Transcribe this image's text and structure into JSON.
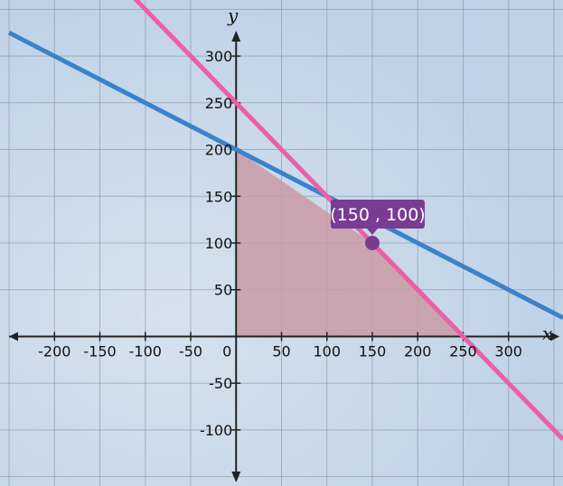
{
  "chart_data": {
    "type": "line",
    "title": "",
    "xlabel": "x",
    "ylabel": "y",
    "xlim": [
      -260,
      360
    ],
    "ylim": [
      -160,
      360
    ],
    "grid": true,
    "x_ticks": [
      -200,
      -150,
      -100,
      -50,
      0,
      50,
      100,
      150,
      200,
      250,
      300
    ],
    "y_ticks": [
      -100,
      -50,
      50,
      100,
      150,
      200,
      250,
      300
    ],
    "x_tick_labels": [
      "-200",
      "-150",
      "-100",
      "-50",
      "0",
      "50",
      "100",
      "150",
      "200",
      "250",
      "300"
    ],
    "y_tick_labels": [
      "-100",
      "-50",
      "50",
      "100",
      "150",
      "200",
      "250",
      "300"
    ],
    "series": [
      {
        "color": "#3a82cc",
        "x": [
          -250,
          360
        ],
        "y": [
          325,
          20
        ]
      },
      {
        "color": "#ec5fa6",
        "x": [
          -120,
          360
        ],
        "y": [
          370,
          -110
        ]
      }
    ],
    "shaded_region": {
      "color": "#c99aa6",
      "vertices": [
        [
          0,
          0
        ],
        [
          0,
          200
        ],
        [
          150,
          100
        ],
        [
          250,
          0
        ]
      ]
    },
    "highlight_point": {
      "x": 150,
      "y": 100,
      "label": "(150 , 100)",
      "color": "#7a3b93"
    },
    "colors": {
      "background": "#c7d7e8",
      "grid": "#7f8c99",
      "axis": "#222222"
    }
  }
}
